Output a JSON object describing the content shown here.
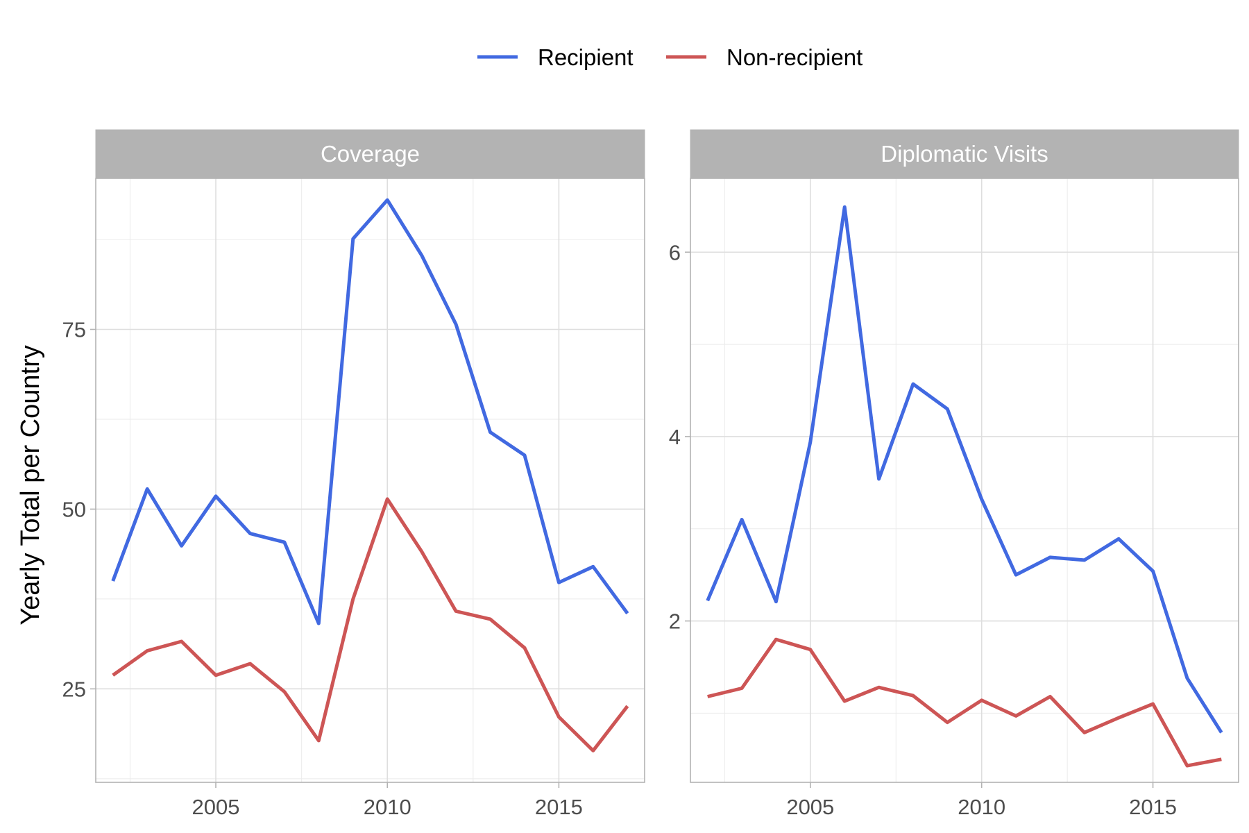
{
  "chart_data": {
    "type": "line",
    "ylabel": "Yearly Total per Country",
    "legend": {
      "placement": "top",
      "entries": [
        {
          "name": "Recipient",
          "color": "#4169E1"
        },
        {
          "name": "Non-recipient",
          "color": "#CD5555"
        }
      ]
    },
    "x": [
      2002,
      2003,
      2004,
      2005,
      2006,
      2007,
      2008,
      2009,
      2010,
      2011,
      2012,
      2013,
      2014,
      2015,
      2016,
      2017
    ],
    "xlim": [
      2001.5,
      2017.5
    ],
    "grid": true,
    "panels": [
      {
        "title": "Coverage",
        "ylim": [
          12,
          96
        ],
        "xticks": [
          2005,
          2010,
          2015
        ],
        "yticks": [
          25,
          50,
          75
        ],
        "series": [
          {
            "name": "Recipient",
            "color": "#4169E1",
            "values": [
              40.0,
              52.8,
              44.9,
              51.8,
              46.6,
              45.4,
              34.1,
              87.6,
              93.0,
              85.3,
              75.7,
              60.7,
              57.5,
              39.8,
              42.0,
              35.5
            ]
          },
          {
            "name": "Non-recipient",
            "color": "#CD5555",
            "values": [
              26.9,
              30.3,
              31.6,
              26.9,
              28.5,
              24.6,
              17.8,
              37.5,
              51.4,
              44.1,
              35.8,
              34.7,
              30.7,
              21.1,
              16.4,
              22.6
            ]
          }
        ]
      },
      {
        "title": "Diplomatic Visits",
        "ylim": [
          0.25,
          6.8
        ],
        "xticks": [
          2005,
          2010,
          2015
        ],
        "yticks": [
          2,
          4,
          6
        ],
        "series": [
          {
            "name": "Recipient",
            "color": "#4169E1",
            "values": [
              2.22,
              3.1,
              2.21,
              3.94,
              6.49,
              3.54,
              4.57,
              4.3,
              3.32,
              2.5,
              2.69,
              2.66,
              2.89,
              2.54,
              1.38,
              0.79
            ]
          },
          {
            "name": "Non-recipient",
            "color": "#CD5555",
            "values": [
              1.18,
              1.27,
              1.8,
              1.69,
              1.13,
              1.28,
              1.19,
              0.9,
              1.14,
              0.97,
              1.18,
              0.79,
              0.95,
              1.1,
              0.43,
              0.5
            ]
          }
        ]
      }
    ]
  }
}
